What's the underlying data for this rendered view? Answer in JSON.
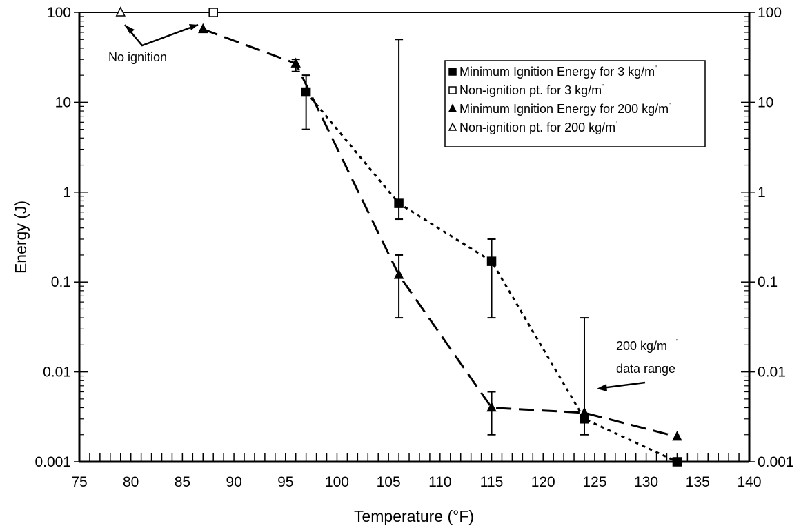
{
  "chart_data": {
    "type": "scatter",
    "xlabel": "Temperature (°F)",
    "ylabel": "Energy (J)",
    "xlim": [
      75,
      140
    ],
    "ylim": [
      0.001,
      100
    ],
    "y_scale": "log",
    "x_ticks": [
      75,
      80,
      85,
      90,
      95,
      100,
      105,
      110,
      115,
      120,
      125,
      130,
      135,
      140
    ],
    "y_ticks": [
      {
        "value": 0.001,
        "label": "0.001"
      },
      {
        "value": 0.01,
        "label": "0.01"
      },
      {
        "value": 0.1,
        "label": "0.1"
      },
      {
        "value": 1,
        "label": "1"
      },
      {
        "value": 10,
        "label": "10"
      },
      {
        "value": 100,
        "label": "100"
      }
    ],
    "right_axis": true,
    "grid": false,
    "legend_position": "top-right",
    "series": [
      {
        "name": "Minimum Ignition Energy for 3 kg/m³",
        "legend_text": "Minimum Ignition Energy for 3 kg/m",
        "marker": "filled-square",
        "line": "dotted",
        "points": [
          {
            "x": 97,
            "y": 13,
            "err_low": 5,
            "err_high": 20
          },
          {
            "x": 106,
            "y": 0.75,
            "err_low": 0.5,
            "err_high": 50
          },
          {
            "x": 115,
            "y": 0.17,
            "err_low": 0.04,
            "err_high": 0.3
          },
          {
            "x": 124,
            "y": 0.003,
            "err_low": 0.002,
            "err_high": 0.04
          },
          {
            "x": 133,
            "y": 0.001
          }
        ]
      },
      {
        "name": "Non-ignition pt. for 3 kg/m³",
        "legend_text": "Non-ignition pt. for 3 kg/m",
        "marker": "open-square",
        "line": "none",
        "points": [
          {
            "x": 88,
            "y": 100
          }
        ]
      },
      {
        "name": "Minimum Ignition Energy for 200 kg/m³",
        "legend_text": "Minimum Ignition Energy for 200 kg/m",
        "marker": "filled-triangle",
        "line": "dashed",
        "points": [
          {
            "x": 87,
            "y": 65
          },
          {
            "x": 96,
            "y": 27,
            "err_low": 22,
            "err_high": 30
          },
          {
            "x": 106,
            "y": 0.12,
            "err_low": 0.04,
            "err_high": 0.2
          },
          {
            "x": 115,
            "y": 0.004,
            "err_low": 0.002,
            "err_high": 0.006
          },
          {
            "x": 124,
            "y": 0.0035
          },
          {
            "x": 133,
            "y": 0.0019
          }
        ]
      },
      {
        "name": "Non-ignition pt. for 200 kg/m³",
        "legend_text": "Non-ignition pt. for 200 kg/m",
        "marker": "open-triangle",
        "line": "none",
        "points": [
          {
            "x": 79,
            "y": 100
          }
        ]
      }
    ],
    "annotations": [
      {
        "id": "no-ignition",
        "text": "No ignition"
      },
      {
        "id": "data-range",
        "line1": "200 kg/m",
        "line2": "data range"
      }
    ]
  }
}
